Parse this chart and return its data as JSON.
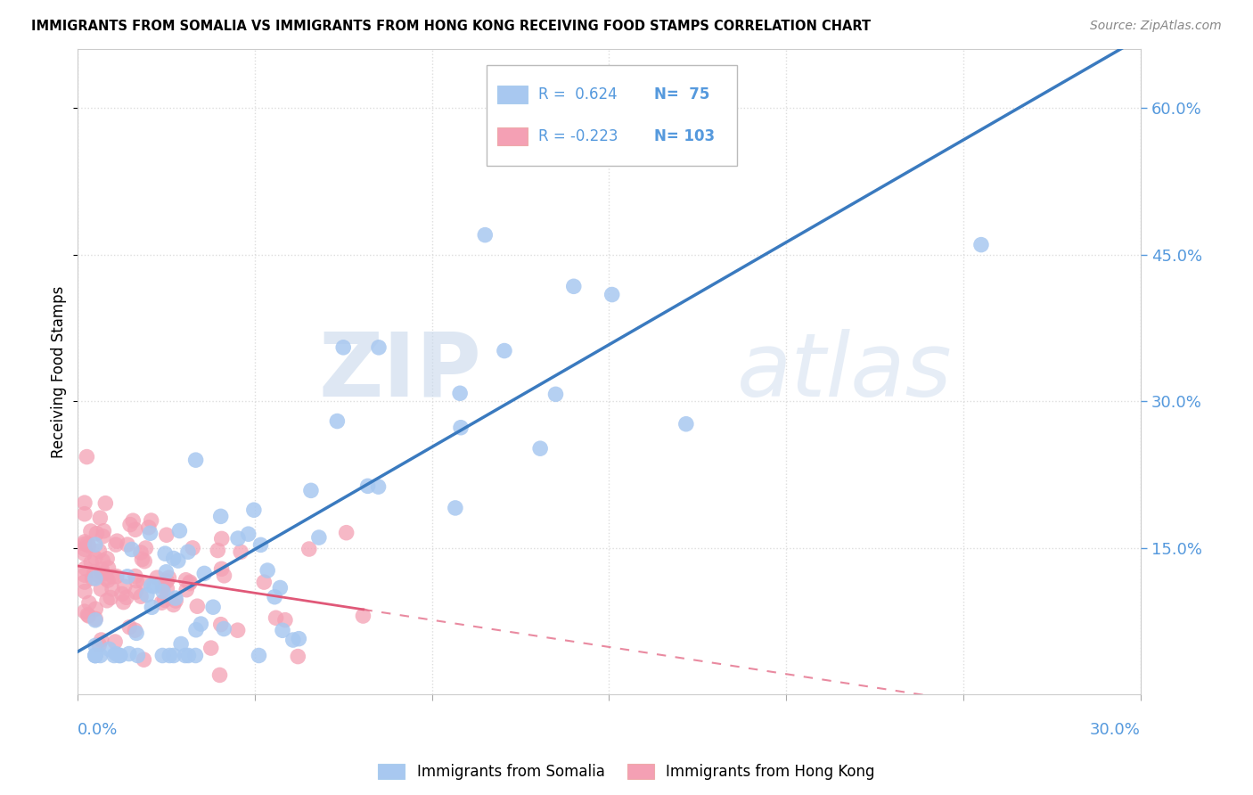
{
  "title": "IMMIGRANTS FROM SOMALIA VS IMMIGRANTS FROM HONG KONG RECEIVING FOOD STAMPS CORRELATION CHART",
  "source": "Source: ZipAtlas.com",
  "ylabel": "Receiving Food Stamps",
  "yticks": [
    "15.0%",
    "30.0%",
    "45.0%",
    "60.0%"
  ],
  "ytick_values": [
    0.15,
    0.3,
    0.45,
    0.6
  ],
  "xlim": [
    0.0,
    0.3
  ],
  "ylim": [
    0.0,
    0.66
  ],
  "somalia_R": 0.624,
  "somalia_N": 75,
  "hk_R": -0.223,
  "hk_N": 103,
  "somalia_color": "#a8c8f0",
  "hk_color": "#f4a0b4",
  "somalia_line_color": "#3a7abf",
  "hk_line_color": "#e05878",
  "legend_somalia_label": "Immigrants from Somalia",
  "legend_hk_label": "Immigrants from Hong Kong",
  "watermark_zip": "ZIP",
  "watermark_atlas": "atlas",
  "background_color": "#ffffff",
  "grid_color": "#dddddd",
  "tick_color": "#5599dd"
}
